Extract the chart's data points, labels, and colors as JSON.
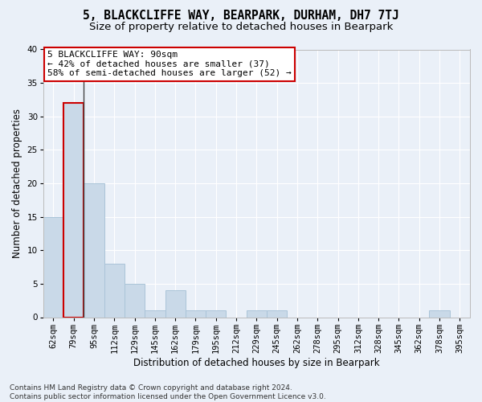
{
  "title": "5, BLACKCLIFFE WAY, BEARPARK, DURHAM, DH7 7TJ",
  "subtitle": "Size of property relative to detached houses in Bearpark",
  "xlabel": "Distribution of detached houses by size in Bearpark",
  "ylabel": "Number of detached properties",
  "categories": [
    "62sqm",
    "79sqm",
    "95sqm",
    "112sqm",
    "129sqm",
    "145sqm",
    "162sqm",
    "179sqm",
    "195sqm",
    "212sqm",
    "229sqm",
    "245sqm",
    "262sqm",
    "278sqm",
    "295sqm",
    "312sqm",
    "328sqm",
    "345sqm",
    "362sqm",
    "378sqm",
    "395sqm"
  ],
  "values": [
    15,
    32,
    20,
    8,
    5,
    1,
    4,
    1,
    1,
    0,
    1,
    1,
    0,
    0,
    0,
    0,
    0,
    0,
    0,
    1,
    0
  ],
  "bar_color": "#c9d9e8",
  "bar_edge_color": "#aac4d8",
  "highlight_bar_index": 1,
  "highlight_bar_edge_color": "#cc0000",
  "annotation_line1": "5 BLACKCLIFFE WAY: 90sqm",
  "annotation_line2": "← 42% of detached houses are smaller (37)",
  "annotation_line3": "58% of semi-detached houses are larger (52) →",
  "annotation_box_color": "#ffffff",
  "annotation_box_edge_color": "#cc0000",
  "ylim": [
    0,
    40
  ],
  "yticks": [
    0,
    5,
    10,
    15,
    20,
    25,
    30,
    35,
    40
  ],
  "footer_line1": "Contains HM Land Registry data © Crown copyright and database right 2024.",
  "footer_line2": "Contains public sector information licensed under the Open Government Licence v3.0.",
  "background_color": "#eaf0f8",
  "plot_background_color": "#eaf0f8",
  "grid_color": "#ffffff",
  "title_fontsize": 10.5,
  "subtitle_fontsize": 9.5,
  "label_fontsize": 8.5,
  "tick_fontsize": 7.5,
  "annotation_fontsize": 8
}
